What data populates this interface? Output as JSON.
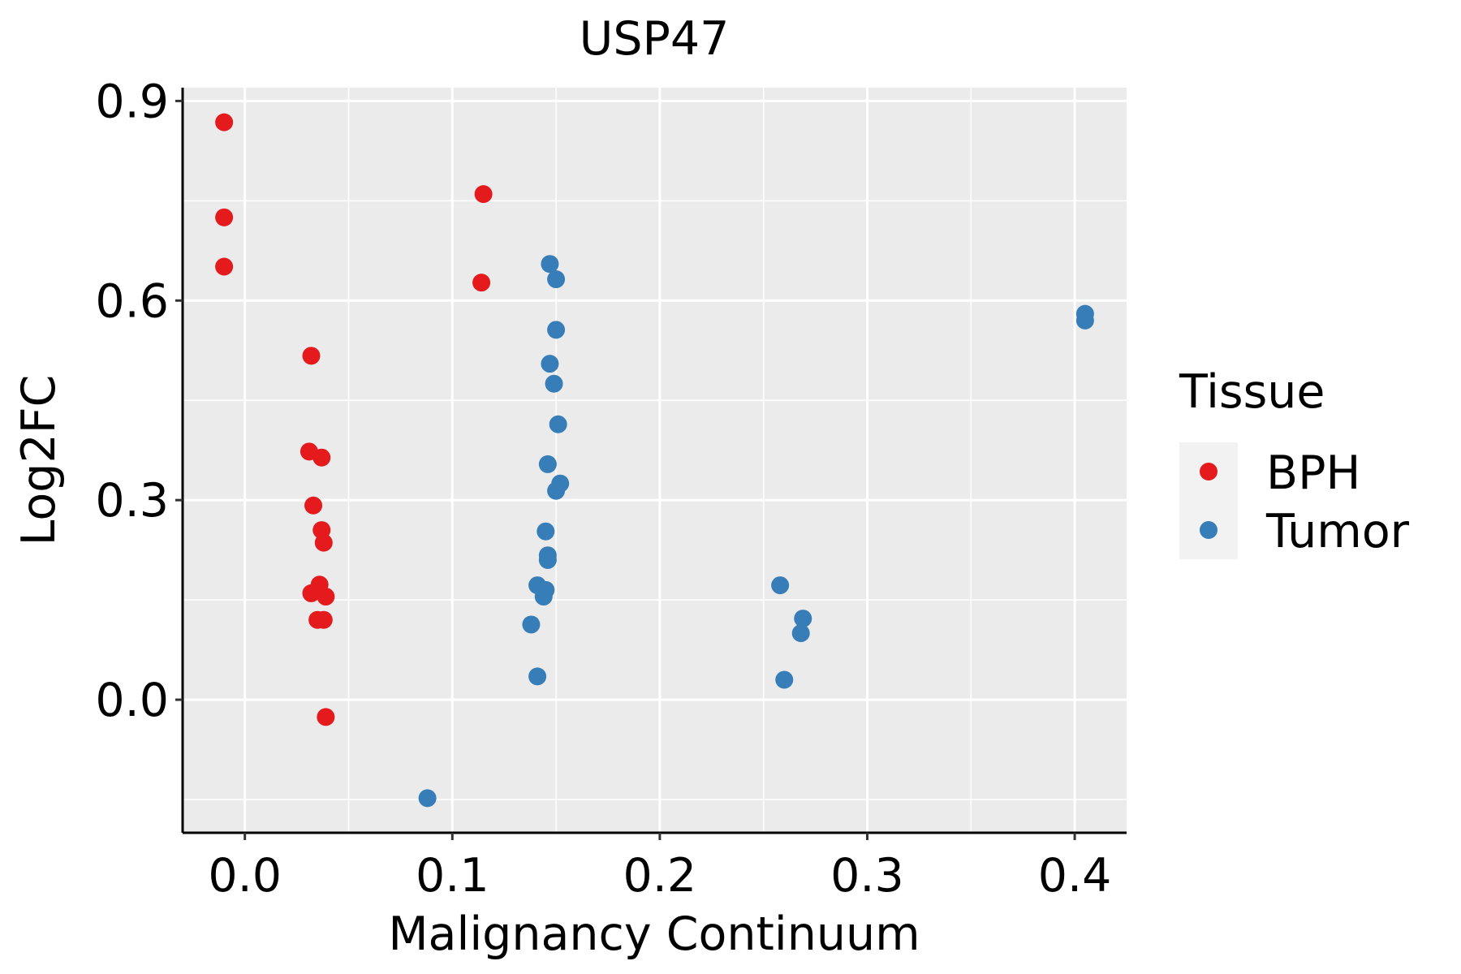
{
  "chart_data": {
    "type": "scatter",
    "title": "USP47",
    "xlabel": "Malignancy Continuum",
    "ylabel": "Log2FC",
    "xlim": [
      -0.03,
      0.425
    ],
    "ylim": [
      -0.2,
      0.92
    ],
    "xticks": [
      0.0,
      0.1,
      0.2,
      0.3,
      0.4
    ],
    "xtick_labels": [
      "0.0",
      "0.1",
      "0.2",
      "0.3",
      "0.4"
    ],
    "yticks": [
      0.0,
      0.3,
      0.6,
      0.9
    ],
    "ytick_labels": [
      "0.0",
      "0.3",
      "0.6",
      "0.9"
    ],
    "grid": true,
    "legend": {
      "title": "Tissue",
      "position": "right",
      "entries": [
        {
          "label": "BPH",
          "color": "#E41A1C"
        },
        {
          "label": "Tumor",
          "color": "#377EB8"
        }
      ]
    },
    "series": [
      {
        "name": "BPH",
        "color": "#E41A1C",
        "points": [
          [
            -0.01,
            0.868
          ],
          [
            -0.01,
            0.725
          ],
          [
            -0.01,
            0.651
          ],
          [
            0.115,
            0.76
          ],
          [
            0.114,
            0.627
          ],
          [
            0.032,
            0.517
          ],
          [
            0.031,
            0.373
          ],
          [
            0.037,
            0.364
          ],
          [
            0.033,
            0.292
          ],
          [
            0.037,
            0.255
          ],
          [
            0.038,
            0.236
          ],
          [
            0.036,
            0.173
          ],
          [
            0.032,
            0.16
          ],
          [
            0.039,
            0.155
          ],
          [
            0.035,
            0.12
          ],
          [
            0.038,
            0.12
          ],
          [
            0.039,
            -0.026
          ]
        ]
      },
      {
        "name": "Tumor",
        "color": "#377EB8",
        "points": [
          [
            0.147,
            0.655
          ],
          [
            0.15,
            0.632
          ],
          [
            0.15,
            0.556
          ],
          [
            0.147,
            0.505
          ],
          [
            0.149,
            0.475
          ],
          [
            0.151,
            0.414
          ],
          [
            0.146,
            0.354
          ],
          [
            0.152,
            0.325
          ],
          [
            0.15,
            0.314
          ],
          [
            0.145,
            0.253
          ],
          [
            0.146,
            0.217
          ],
          [
            0.146,
            0.21
          ],
          [
            0.141,
            0.172
          ],
          [
            0.145,
            0.165
          ],
          [
            0.144,
            0.155
          ],
          [
            0.138,
            0.113
          ],
          [
            0.141,
            0.035
          ],
          [
            0.088,
            -0.148
          ],
          [
            0.258,
            0.172
          ],
          [
            0.269,
            0.122
          ],
          [
            0.268,
            0.1
          ],
          [
            0.26,
            0.03
          ],
          [
            0.405,
            0.58
          ],
          [
            0.405,
            0.57
          ]
        ]
      }
    ]
  }
}
